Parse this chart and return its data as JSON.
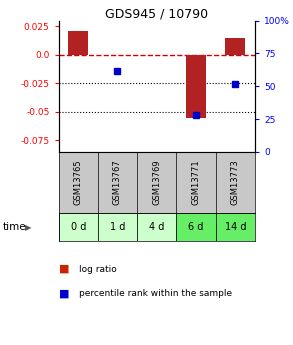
{
  "title": "GDS945 / 10790",
  "samples": [
    "GSM13765",
    "GSM13767",
    "GSM13769",
    "GSM13771",
    "GSM13773"
  ],
  "time_labels": [
    "0 d",
    "1 d",
    "4 d",
    "6 d",
    "14 d"
  ],
  "log_ratios": [
    0.021,
    0.0,
    0.0,
    -0.055,
    0.015
  ],
  "percentile_ranks": [
    null,
    62,
    null,
    28,
    52
  ],
  "ylim_left": [
    -0.085,
    0.03
  ],
  "ylim_right": [
    0,
    100
  ],
  "yticks_left": [
    0.025,
    0.0,
    -0.025,
    -0.05,
    -0.075
  ],
  "yticks_right": [
    100,
    75,
    50,
    25,
    0
  ],
  "bar_color": "#b22222",
  "dot_color": "#0000cc",
  "zero_line_color": "#cc0000",
  "dotted_line_color": "#000000",
  "background_color": "#ffffff",
  "gsm_bg_color": "#c8c8c8",
  "time_bg_colors": [
    "#ccffcc",
    "#ccffcc",
    "#ccffcc",
    "#66ee66",
    "#66ee66"
  ],
  "time_label_color": "#555555",
  "arrow_color": "#555555",
  "legend_bar_color": "#cc2200",
  "legend_dot_color": "#0000cc",
  "fig_width": 2.93,
  "fig_height": 3.45,
  "dpi": 100
}
